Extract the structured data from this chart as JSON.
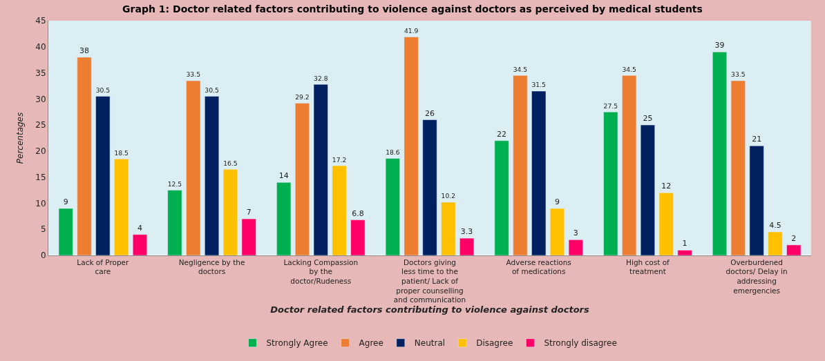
{
  "chart_data": {
    "type": "bar",
    "title": "Graph 1: Doctor related factors contributing to violence against doctors as perceived by medical students",
    "xlabel": "Doctor related factors contributing to violence against doctors",
    "ylabel": "Percentages",
    "categories": [
      "Lack of Proper care",
      "Negligence by the doctors",
      "Lacking Compassion by the doctor/Rudeness",
      "Doctors giving less time to the patient/ Lack of proper counselling and communication",
      "Adverse reactions of medications",
      "High cost of treatment",
      "Overburdened doctors/ Delay in addressing emergencies"
    ],
    "series": [
      {
        "name": "Strongly Agree",
        "color": "#00b050",
        "values": [
          9,
          12.5,
          14,
          18.6,
          22,
          27.5,
          39
        ]
      },
      {
        "name": "Agree",
        "color": "#ed7d31",
        "values": [
          38,
          33.5,
          29.2,
          41.9,
          34.5,
          34.5,
          33.5
        ]
      },
      {
        "name": "Neutral",
        "color": "#002060",
        "values": [
          30.5,
          30.5,
          32.8,
          26,
          31.5,
          25,
          21
        ]
      },
      {
        "name": "Disagree",
        "color": "#ffc000",
        "values": [
          18.5,
          16.5,
          17.2,
          10.2,
          9,
          12,
          4.5
        ]
      },
      {
        "name": "Strongly disagree",
        "color": "#ff0066",
        "values": [
          4,
          7,
          6.8,
          3.3,
          3,
          1,
          2
        ]
      }
    ],
    "ylim": [
      0,
      45
    ],
    "yticks": [
      0,
      5,
      10,
      15,
      20,
      25,
      30,
      35,
      40,
      45
    ],
    "grid": false,
    "legend": "bottom",
    "data_labels": true
  }
}
